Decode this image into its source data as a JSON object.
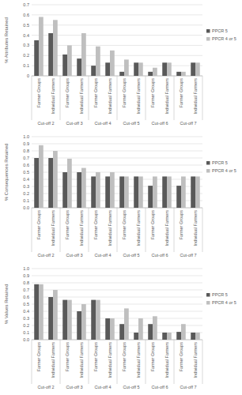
{
  "chart_data": [
    {
      "type": "bar",
      "y_label": "% Attributes Retained",
      "categories": [
        "Farmer Groups",
        "Individual Farmers",
        "Farmer Groups",
        "Individual Farmers",
        "Farmer Groups",
        "Individual Farmers",
        "Farmer Groups",
        "Individual Farmers",
        "Farmer Groups",
        "Individual Farmers",
        "Farmer Groups",
        "Individual Farmers"
      ],
      "groups": [
        "Cut-off 2",
        "Cut-off 3",
        "Cut-off 4",
        "Cut-off 5",
        "Cut-off 6",
        "Cut-off 7"
      ],
      "series": [
        {
          "name": "PPCR 5",
          "color": "#595959",
          "values": [
            0.35,
            0.42,
            0.21,
            0.17,
            0.1,
            0.13,
            0.04,
            0.13,
            0.04,
            0.13,
            0.04,
            0.13
          ]
        },
        {
          "name": "PPCR 4 or 5",
          "color": "#bfbfbf",
          "values": [
            0.58,
            0.55,
            0.3,
            0.42,
            0.29,
            0.25,
            0.16,
            0.13,
            0.08,
            0.13,
            0.04,
            0.13
          ]
        }
      ],
      "ylim": [
        0,
        0.7
      ],
      "yticks": [
        0,
        0.1,
        0.2,
        0.3,
        0.4,
        0.5,
        0.6,
        0.7
      ],
      "grid": true,
      "legend": "right"
    },
    {
      "type": "bar",
      "y_label": "% Consequences Retained",
      "categories": [
        "Farmer Groups",
        "Individual Farmers",
        "Farmer Groups",
        "Individual Farmers",
        "Farmer Groups",
        "Individual Farmers",
        "Farmer Groups",
        "Individual Farmers",
        "Farmer Groups",
        "Individual Farmers",
        "Farmer Groups",
        "Individual Farmers"
      ],
      "groups": [
        "Cut-off 2",
        "Cut-off 3",
        "Cut-off 4",
        "Cut-off 5",
        "Cut-off 6",
        "Cut-off 7"
      ],
      "series": [
        {
          "name": "PPCR 5",
          "color": "#595959",
          "values": [
            0.7,
            0.7,
            0.5,
            0.5,
            0.44,
            0.44,
            0.44,
            0.44,
            0.31,
            0.44,
            0.31,
            0.44
          ]
        },
        {
          "name": "PPCR 4 or 5",
          "color": "#bfbfbf",
          "values": [
            0.88,
            0.8,
            0.69,
            0.56,
            0.5,
            0.5,
            0.44,
            0.44,
            0.44,
            0.44,
            0.44,
            0.44
          ]
        }
      ],
      "ylim": [
        0,
        1
      ],
      "yticks": [
        {
          "value": 0,
          "label": "0.0"
        },
        0.1,
        0.2,
        0.3,
        0.4,
        0.5,
        0.6,
        0.7,
        0.8,
        0.9,
        {
          "value": 1,
          "label": "1.0"
        }
      ],
      "grid": true,
      "legend": "right"
    },
    {
      "type": "bar",
      "y_label": "% Values Retained",
      "categories": [
        "Farmer Groups",
        "Individual Farmers",
        "Farmer Groups",
        "Individual Farmers",
        "Farmer Groups",
        "Individual Farmers",
        "Farmer Groups",
        "Individual Farmers",
        "Farmer Groups",
        "Individual Farmers",
        "Farmer Groups",
        "Individual Farmers"
      ],
      "groups": [
        "Cut-off 2",
        "Cut-off 3",
        "Cut-off 4",
        "Cut-off 5",
        "Cut-off 6",
        "Cut-off 7"
      ],
      "series": [
        {
          "name": "PPCR 5",
          "color": "#595959",
          "values": [
            0.78,
            0.6,
            0.56,
            0.4,
            0.56,
            0.3,
            0.22,
            0.1,
            0.22,
            0.1,
            0.11,
            0.1
          ]
        },
        {
          "name": "PPCR 4 or 5",
          "color": "#bfbfbf",
          "values": [
            0.78,
            0.7,
            0.56,
            0.5,
            0.56,
            0.3,
            0.44,
            0.3,
            0.33,
            0.1,
            0.22,
            0.1
          ]
        }
      ],
      "ylim": [
        0,
        1
      ],
      "yticks": [
        {
          "value": 0,
          "label": "0.0"
        },
        0.1,
        0.2,
        0.3,
        0.4,
        0.5,
        0.6,
        0.7,
        0.8,
        0.9,
        {
          "value": 1,
          "label": "1.0"
        }
      ],
      "grid": true,
      "legend": "right"
    }
  ]
}
